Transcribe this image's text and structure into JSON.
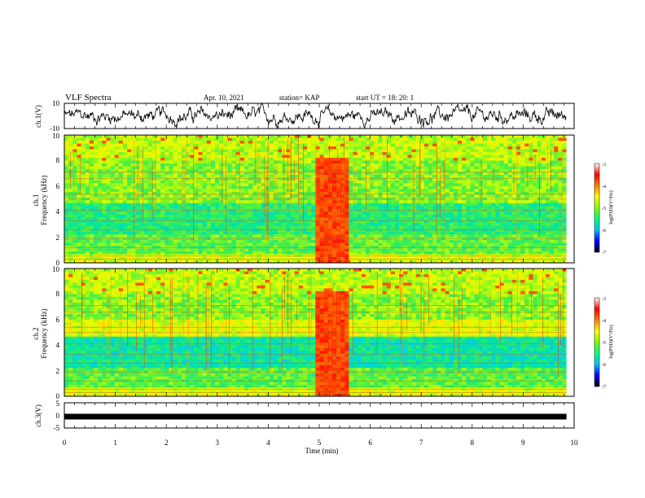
{
  "header": {
    "title": "VLF Spectra",
    "date": "Apr. 10, 2021",
    "station": "station= KAP",
    "start": "start  UT  =   18: 20: 1"
  },
  "colors": {
    "colormap": [
      "#000080",
      "#0000ff",
      "#00a0ff",
      "#00e0c0",
      "#40f040",
      "#c0ff00",
      "#ffff00",
      "#ffa000",
      "#ff2000",
      "#ffffff"
    ],
    "trace": "#000000"
  },
  "chart_data": [
    {
      "type": "line",
      "name": "ch1-waveform",
      "ylabel": "ch.1(V)",
      "ylim": [
        -10,
        10
      ],
      "yticks": [
        "10",
        "-10"
      ],
      "xlim": [
        0,
        10
      ]
    },
    {
      "type": "heatmap",
      "name": "ch1-spectrogram",
      "ylabel_lines": [
        "ch.1",
        "Frequency (kHz)"
      ],
      "ylim": [
        0,
        10
      ],
      "yticks": [
        "0",
        "2",
        "4",
        "6",
        "8",
        "10"
      ],
      "xlim": [
        0,
        10
      ],
      "data_end_min": 9.85,
      "colorbar": {
        "label": "log(PSD)(V²/Hz)",
        "ticks": [
          "-3",
          "-4",
          "-5",
          "-6",
          "-7"
        ],
        "range": [
          -7,
          -3
        ]
      },
      "burst_min": [
        4.95,
        5.55
      ]
    },
    {
      "type": "heatmap",
      "name": "ch2-spectrogram",
      "ylabel_lines": [
        "ch.2",
        "Frequency (kHz)"
      ],
      "ylim": [
        0,
        10
      ],
      "yticks": [
        "0",
        "2",
        "4",
        "6",
        "8",
        "10"
      ],
      "xlim": [
        0,
        10
      ],
      "data_end_min": 9.85,
      "colorbar": {
        "label": "log(PSD)(V²/Hz)",
        "ticks": [
          "-3",
          "-4",
          "-5",
          "-6",
          "-7"
        ],
        "range": [
          -7,
          -3
        ]
      },
      "burst_min": [
        4.95,
        5.55
      ]
    },
    {
      "type": "line",
      "name": "ch3-waveform",
      "ylabel": "ch.3(V)",
      "ylim": [
        -5,
        5
      ],
      "yticks": [
        "5",
        "0",
        "-5"
      ],
      "xlim": [
        0,
        10
      ],
      "constant_value": -0.5
    }
  ],
  "xaxis": {
    "label": "Time  (min)",
    "ticks": [
      "0",
      "1",
      "2",
      "3",
      "4",
      "5",
      "6",
      "7",
      "8",
      "9",
      "10"
    ]
  }
}
